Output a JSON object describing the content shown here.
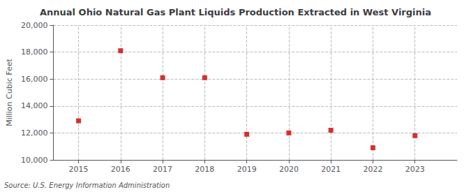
{
  "chart_data": {
    "type": "scatter",
    "title": "Annual Ohio Natural Gas Plant Liquids Production Extracted in West Virginia",
    "ylabel": "Million Cubic Feet",
    "source": "Source: U.S. Energy Information Administration",
    "x": [
      2015,
      2016,
      2017,
      2018,
      2019,
      2020,
      2021,
      2022,
      2023
    ],
    "values": [
      12900,
      18100,
      16100,
      16100,
      11900,
      12000,
      12200,
      10900,
      11800
    ],
    "xlim": [
      2014.4,
      2024.0
    ],
    "xticks": [
      2015,
      2016,
      2017,
      2018,
      2019,
      2020,
      2021,
      2022,
      2023
    ],
    "ylim": [
      10000,
      20000
    ],
    "yticks": [
      {
        "value": 10000,
        "label": "10,000"
      },
      {
        "value": 12000,
        "label": "12,000"
      },
      {
        "value": 14000,
        "label": "14,000"
      },
      {
        "value": 16000,
        "label": "16,000"
      },
      {
        "value": 18000,
        "label": "18,000"
      },
      {
        "value": 20000,
        "label": "20,000"
      }
    ],
    "color": "#cc0000",
    "marker": "square",
    "grid": true
  }
}
